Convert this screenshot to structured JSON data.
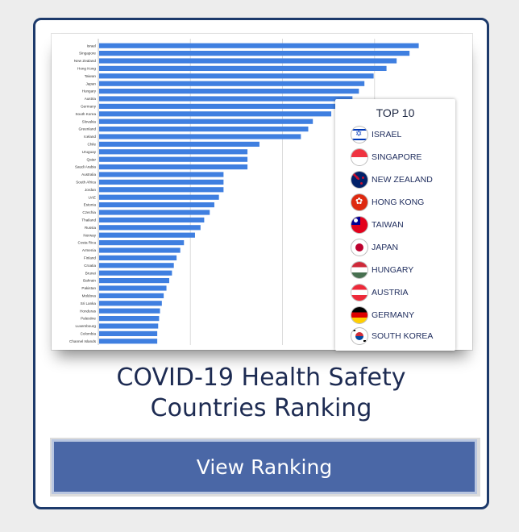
{
  "card": {
    "headline_line1": "COVID-19 Health Safety",
    "headline_line2": "Countries Ranking",
    "cta_label": "View Ranking"
  },
  "legend": {
    "title": "TOP 10",
    "items": [
      {
        "label": "ISRAEL",
        "icon": "israel-flag-icon"
      },
      {
        "label": "SINGAPORE",
        "icon": "singapore-flag-icon"
      },
      {
        "label": "NEW ZEALAND",
        "icon": "new-zealand-flag-icon"
      },
      {
        "label": "HONG KONG",
        "icon": "hong-kong-flag-icon"
      },
      {
        "label": "TAIWAN",
        "icon": "taiwan-flag-icon"
      },
      {
        "label": "JAPAN",
        "icon": "japan-flag-icon"
      },
      {
        "label": "HUNGARY",
        "icon": "hungary-flag-icon"
      },
      {
        "label": "AUSTRIA",
        "icon": "austria-flag-icon"
      },
      {
        "label": "GERMANY",
        "icon": "germany-flag-icon"
      },
      {
        "label": "SOUTH KOREA",
        "icon": "south-korea-flag-icon"
      }
    ]
  },
  "colors": {
    "bar": "#3f7fe0",
    "card_border": "#1d3a6b",
    "headline": "#1d2b52",
    "cta_fill": "#4a67a6",
    "cta_border": "#b9c6e0"
  },
  "chart_data": {
    "type": "bar",
    "orientation": "horizontal",
    "categories": [
      "Israel",
      "Singapore",
      "New Zealand",
      "Hong Kong",
      "Taiwan",
      "Japan",
      "Hungary",
      "Austria",
      "Germany",
      "South Korea",
      "Slovakia",
      "Greenland",
      "Iceland",
      "Chile",
      "Uruguay",
      "Qatar",
      "Saudi Arabia",
      "Australia",
      "South Africa",
      "Jordan",
      "UAE",
      "Estonia",
      "Czechia",
      "Thailand",
      "Russia",
      "Norway",
      "Costa Rica",
      "Armenia",
      "Finland",
      "Croatia",
      "Brunei",
      "Bahrain",
      "Pakistan",
      "Moldova",
      "Sri Lanka",
      "Honduras",
      "Palestine",
      "Luxembourg",
      "Colombia",
      "Channel Islands"
    ],
    "values": [
      748,
      738,
      724,
      713,
      699,
      689,
      683,
      676,
      667,
      653,
      633,
      628,
      620,
      575,
      562,
      562,
      562,
      536,
      536,
      536,
      531,
      526,
      521,
      515,
      511,
      505,
      493,
      489,
      485,
      482,
      480,
      477,
      474,
      471,
      469,
      467,
      466,
      465,
      464,
      464
    ],
    "xlim": [
      400,
      800
    ],
    "grid": true,
    "legend_position": "right"
  }
}
